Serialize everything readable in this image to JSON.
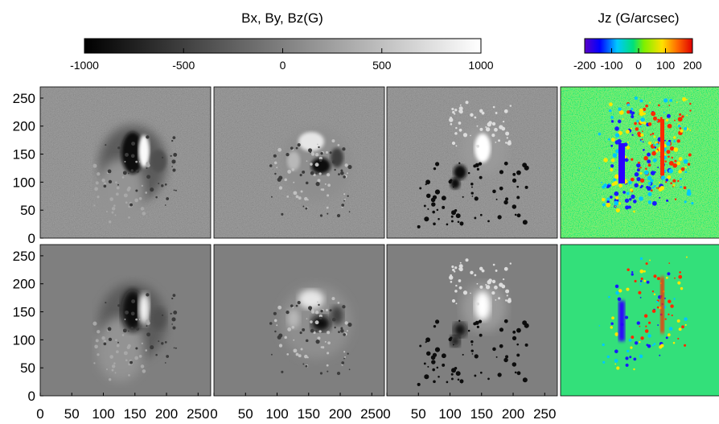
{
  "colorbar_b": {
    "title": "Bx, By, Bz(G)",
    "ticks": [
      "-1000",
      "-500",
      "0",
      "500",
      "1000"
    ],
    "range": [
      -1000,
      1000
    ]
  },
  "colorbar_j": {
    "title": "Jz (G/arcsec)",
    "ticks": [
      "-200",
      "-100",
      "0",
      "100",
      "200"
    ],
    "range": [
      -200,
      200
    ]
  },
  "axes": {
    "y_ticks": [
      "0",
      "50",
      "100",
      "150",
      "200",
      "250"
    ],
    "x_ticks": [
      "0",
      "50",
      "100",
      "150",
      "200",
      "250"
    ],
    "range": [
      0,
      270
    ]
  },
  "chart_data": {
    "type": "heatmap",
    "layout": "2 rows x 4 columns",
    "columns": [
      "Bx",
      "By",
      "Bz",
      "Jz"
    ],
    "rows": 2,
    "field_range_G": [
      -1000,
      1000
    ],
    "current_range_G_per_arcsec": [
      -200,
      200
    ],
    "x_range": [
      0,
      270
    ],
    "y_range": [
      0,
      270
    ],
    "colors": {
      "field_colormap": [
        "#000000",
        "#ffffff"
      ],
      "current_colormap": [
        "#5a00c8",
        "#0000ff",
        "#00c8ff",
        "#00e07a",
        "#7ef000",
        "#ffe000",
        "#ff6a00",
        "#e00000"
      ]
    }
  }
}
